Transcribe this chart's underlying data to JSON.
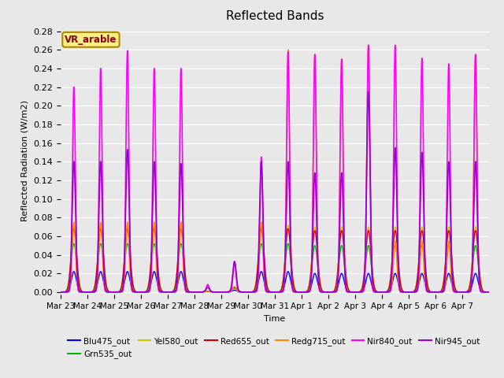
{
  "title": "Reflected Bands",
  "xlabel": "Time",
  "ylabel": "Reflected Radiation (W/m2)",
  "annotation": "VR_arable",
  "ylim": [
    0.0,
    0.28
  ],
  "yticks": [
    0.0,
    0.02,
    0.04,
    0.06,
    0.08,
    0.1,
    0.12,
    0.14,
    0.16,
    0.18,
    0.2,
    0.22,
    0.24,
    0.26,
    0.28
  ],
  "xtick_labels": [
    "Mar 23",
    "Mar 24",
    "Mar 25",
    "Mar 26",
    "Mar 27",
    "Mar 28",
    "Mar 29",
    "Mar 30",
    "Mar 31",
    "Apr 1",
    "Apr 2",
    "Apr 3",
    "Apr 4",
    "Apr 5",
    "Apr 6",
    "Apr 7"
  ],
  "n_days": 16,
  "pts_per_day": 500,
  "series": {
    "Blu475_out": {
      "color": "#0000ff",
      "lw": 1.0,
      "peaks": [
        0.022,
        0.022,
        0.022,
        0.022,
        0.022,
        0.001,
        0.002,
        0.022,
        0.022,
        0.02,
        0.02,
        0.02,
        0.02,
        0.02,
        0.02,
        0.02
      ],
      "sigma": 0.09
    },
    "Grn535_out": {
      "color": "#00bb00",
      "lw": 1.0,
      "peaks": [
        0.052,
        0.052,
        0.052,
        0.052,
        0.052,
        0.001,
        0.004,
        0.052,
        0.052,
        0.05,
        0.05,
        0.05,
        0.05,
        0.05,
        0.05,
        0.05
      ],
      "sigma": 0.1
    },
    "Yel580_out": {
      "color": "#cccc00",
      "lw": 1.0,
      "peaks": [
        0.072,
        0.072,
        0.072,
        0.072,
        0.072,
        0.001,
        0.005,
        0.072,
        0.072,
        0.07,
        0.07,
        0.07,
        0.07,
        0.07,
        0.07,
        0.07
      ],
      "sigma": 0.1
    },
    "Red655_out": {
      "color": "#cc0000",
      "lw": 1.0,
      "peaks": [
        0.068,
        0.068,
        0.068,
        0.068,
        0.068,
        0.001,
        0.005,
        0.068,
        0.068,
        0.066,
        0.066,
        0.066,
        0.066,
        0.066,
        0.066,
        0.066
      ],
      "sigma": 0.1
    },
    "Redg715_out": {
      "color": "#ff8800",
      "lw": 1.0,
      "peaks": [
        0.075,
        0.075,
        0.075,
        0.075,
        0.075,
        0.001,
        0.006,
        0.075,
        0.26,
        0.255,
        0.25,
        0.265,
        0.055,
        0.055,
        0.055,
        0.255
      ],
      "sigma": 0.06
    },
    "Nir840_out": {
      "color": "#ff00ff",
      "lw": 1.2,
      "peaks": [
        0.22,
        0.24,
        0.259,
        0.24,
        0.24,
        0.008,
        0.032,
        0.145,
        0.258,
        0.255,
        0.25,
        0.265,
        0.265,
        0.251,
        0.245,
        0.255
      ],
      "sigma": 0.055
    },
    "Nir945_out": {
      "color": "#9900cc",
      "lw": 1.2,
      "peaks": [
        0.14,
        0.14,
        0.153,
        0.14,
        0.138,
        0.005,
        0.033,
        0.14,
        0.14,
        0.128,
        0.128,
        0.215,
        0.155,
        0.15,
        0.14,
        0.14
      ],
      "sigma": 0.065
    }
  }
}
